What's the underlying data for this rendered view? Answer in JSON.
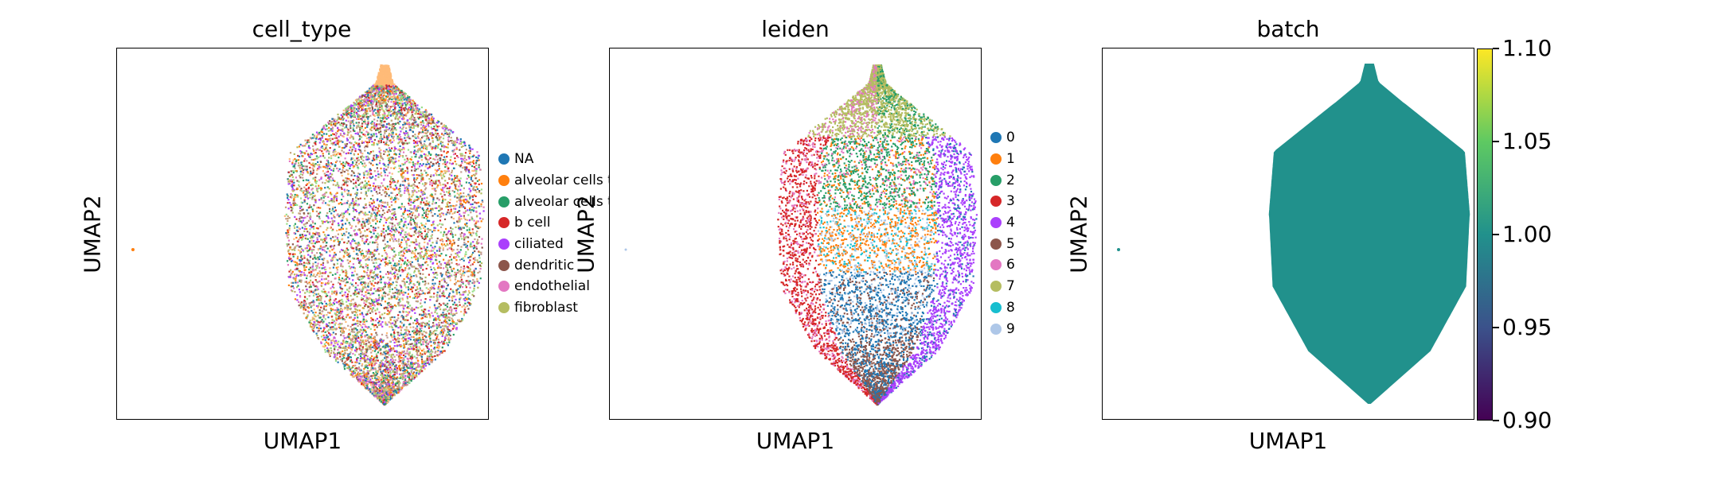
{
  "chart_data": [
    {
      "type": "scatter",
      "title": "cell_type",
      "xlabel": "UMAP1",
      "ylabel": "UMAP2",
      "legend_position": "right",
      "legend": [
        {
          "label": "NA",
          "color": "#1f77b4"
        },
        {
          "label": "alveolar cells t",
          "color": "#ff7f0e"
        },
        {
          "label": "alveolar cells t",
          "color": "#279e68"
        },
        {
          "label": "b cell",
          "color": "#d62728"
        },
        {
          "label": "ciliated",
          "color": "#aa40fc"
        },
        {
          "label": "dendritic",
          "color": "#8c564b"
        },
        {
          "label": "endothelial",
          "color": "#e377c2"
        },
        {
          "label": "fibroblast",
          "color": "#b5bd61"
        }
      ],
      "point_colors": [
        "#1f77b4",
        "#ff7f0e",
        "#279e68",
        "#d62728",
        "#aa40fc",
        "#8c564b",
        "#e377c2",
        "#b5bd61",
        "#c8a27a",
        "#ffbb78",
        "#98df8a",
        "#c49c94"
      ]
    },
    {
      "type": "scatter",
      "title": "leiden",
      "xlabel": "UMAP1",
      "ylabel": "UMAP2",
      "legend_position": "right",
      "legend": [
        {
          "label": "0",
          "color": "#1f77b4"
        },
        {
          "label": "1",
          "color": "#ff7f0e"
        },
        {
          "label": "2",
          "color": "#279e68"
        },
        {
          "label": "3",
          "color": "#d62728"
        },
        {
          "label": "4",
          "color": "#aa40fc"
        },
        {
          "label": "5",
          "color": "#8c564b"
        },
        {
          "label": "6",
          "color": "#e377c2"
        },
        {
          "label": "7",
          "color": "#b5bd61"
        },
        {
          "label": "8",
          "color": "#17becf"
        },
        {
          "label": "9",
          "color": "#aec7e8"
        }
      ]
    },
    {
      "type": "scatter",
      "title": "batch",
      "xlabel": "UMAP1",
      "ylabel": "UMAP2",
      "colorbar": {
        "min": 0.9,
        "max": 1.1,
        "ticks": [
          "1.10",
          "1.05",
          "1.00",
          "0.95",
          "0.90"
        ],
        "colormap": [
          "#440154",
          "#3b528b",
          "#21918c",
          "#5ec962",
          "#fde725"
        ]
      },
      "point_color": "#21918c"
    }
  ]
}
